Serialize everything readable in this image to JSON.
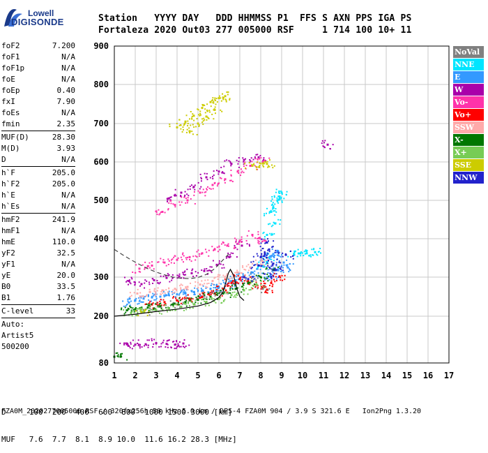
{
  "logo": {
    "line1": "Lowell",
    "line2": "DIGISONDE"
  },
  "header": {
    "line1": "Station   YYYY DAY   DDD HHMMSS P1  FFS S AXN PPS IGA PS",
    "line2": "Fortaleza 2020 Out03 277 005000 RSF     1 714 100 10+ 11"
  },
  "params": [
    {
      "key": "foF2",
      "value": "7.200"
    },
    {
      "key": "foF1",
      "value": "N/A"
    },
    {
      "key": "foF1p",
      "value": "N/A"
    },
    {
      "key": "foE",
      "value": "N/A"
    },
    {
      "key": "foEp",
      "value": "0.40"
    },
    {
      "key": "fxI",
      "value": "7.90"
    },
    {
      "key": "foEs",
      "value": "N/A"
    },
    {
      "key": "fmin",
      "value": "2.35"
    },
    {
      "sep": true
    },
    {
      "key": "MUF(D)",
      "value": "28.30"
    },
    {
      "key": "M(D)",
      "value": "3.93"
    },
    {
      "key": "D",
      "value": "N/A"
    },
    {
      "sep": true
    },
    {
      "key": "h`F",
      "value": "205.0"
    },
    {
      "key": "h`F2",
      "value": "205.0"
    },
    {
      "key": "h`E",
      "value": "N/A"
    },
    {
      "key": "h`Es",
      "value": "N/A"
    },
    {
      "sep": true
    },
    {
      "key": "hmF2",
      "value": "241.9"
    },
    {
      "key": "hmF1",
      "value": "N/A"
    },
    {
      "key": "hmE",
      "value": "110.0"
    },
    {
      "key": "yF2",
      "value": "32.5"
    },
    {
      "key": "yF1",
      "value": "N/A"
    },
    {
      "key": "yE",
      "value": "20.0"
    },
    {
      "key": "B0",
      "value": "33.5"
    },
    {
      "key": "B1",
      "value": "1.76"
    },
    {
      "sep": true
    },
    {
      "key": "C-level",
      "value": "33"
    },
    {
      "sep": true
    }
  ],
  "auto_lines": [
    "Auto:",
    "Artist5",
    "500200"
  ],
  "legend": [
    {
      "label": "NoVal",
      "color": "#808080"
    },
    {
      "label": "NNE",
      "color": "#00e5ff"
    },
    {
      "label": "E",
      "color": "#3399ff"
    },
    {
      "label": "W",
      "color": "#aa00aa"
    },
    {
      "label": "Vo-",
      "color": "#ff33aa"
    },
    {
      "label": "Vo+",
      "color": "#ff0000"
    },
    {
      "label": "SSW",
      "color": "#ffaaaa"
    },
    {
      "label": "X-",
      "color": "#007700"
    },
    {
      "label": "X+",
      "color": "#77cc55"
    },
    {
      "label": "SSE",
      "color": "#cccc00"
    },
    {
      "label": "NNW",
      "color": "#2222cc"
    }
  ],
  "muf_table": {
    "d_line": "D     100  200  400  600  800  1000 1500 3000 [km]",
    "muf_line": "MUF   7.6  7.7  8.1  8.9 10.0  11.6 16.2 28.3 [MHz]"
  },
  "footer": "FZA0M_2020277005000.RSF / 320fx256h 50 kHz 5.0 km / DPS-4 FZA0M 904 / 3.9 S 321.6 E   Ion2Png 1.3.20",
  "chart_data": {
    "type": "scatter",
    "x_ticks": [
      1,
      2,
      3,
      4,
      5,
      6,
      7,
      8,
      9,
      10,
      11,
      12,
      13,
      14,
      15,
      16,
      17
    ],
    "y_ticks": [
      80,
      200,
      300,
      400,
      500,
      600,
      700,
      800,
      900
    ],
    "xlim": [
      1,
      17
    ],
    "ylim": [
      80,
      900
    ],
    "grid": true,
    "series": [
      {
        "name": "NoVal",
        "color": "#808080",
        "points": [
          [
            2.4,
            212
          ],
          [
            3.1,
            225
          ],
          [
            3.9,
            232
          ],
          [
            4.6,
            240
          ],
          [
            5.3,
            252
          ],
          [
            6.1,
            262
          ],
          [
            6.8,
            285
          ],
          [
            7.6,
            300
          ],
          [
            8.1,
            270
          ]
        ]
      },
      {
        "name": "NNE",
        "color": "#00e5ff",
        "points": [
          [
            8.1,
            330
          ],
          [
            8.4,
            350
          ],
          [
            8.6,
            480
          ],
          [
            8.8,
            500
          ],
          [
            8.9,
            510
          ],
          [
            9.0,
            520
          ],
          [
            8.5,
            470
          ],
          [
            8.7,
            440
          ],
          [
            8.3,
            410
          ],
          [
            10.6,
            365
          ],
          [
            10.2,
            362
          ],
          [
            9.9,
            362
          ],
          [
            9.6,
            358
          ]
        ]
      },
      {
        "name": "E",
        "color": "#3399ff",
        "points": [
          [
            1.7,
            235
          ],
          [
            2.0,
            240
          ],
          [
            2.4,
            245
          ],
          [
            2.8,
            248
          ],
          [
            3.2,
            250
          ],
          [
            3.6,
            254
          ],
          [
            4.0,
            256
          ],
          [
            4.4,
            258
          ],
          [
            4.8,
            262
          ],
          [
            5.2,
            266
          ],
          [
            5.6,
            270
          ],
          [
            6.0,
            275
          ],
          [
            6.4,
            282
          ],
          [
            6.8,
            292
          ],
          [
            7.2,
            302
          ],
          [
            7.6,
            312
          ],
          [
            8.0,
            330
          ],
          [
            8.3,
            350
          ],
          [
            8.6,
            360
          ],
          [
            8.8,
            365
          ],
          [
            9.1,
            338
          ],
          [
            9.3,
            325
          ],
          [
            8.8,
            318
          ],
          [
            8.4,
            302
          ]
        ]
      },
      {
        "name": "W",
        "color": "#aa00aa",
        "points": [
          [
            1.6,
            128
          ],
          [
            2.0,
            127
          ],
          [
            2.5,
            128
          ],
          [
            3.0,
            131
          ],
          [
            3.5,
            129
          ],
          [
            3.9,
            127
          ],
          [
            4.3,
            130
          ],
          [
            1.7,
            290
          ],
          [
            2.3,
            282
          ],
          [
            2.9,
            292
          ],
          [
            3.5,
            298
          ],
          [
            4.1,
            302
          ],
          [
            4.7,
            310
          ],
          [
            5.3,
            316
          ],
          [
            5.9,
            332
          ],
          [
            6.5,
            352
          ],
          [
            7.1,
            382
          ],
          [
            3.6,
            505
          ],
          [
            4.2,
            520
          ],
          [
            4.8,
            535
          ],
          [
            5.4,
            560
          ],
          [
            6.0,
            575
          ],
          [
            6.6,
            595
          ],
          [
            7.2,
            605
          ],
          [
            7.9,
            612
          ],
          [
            11.2,
            645
          ]
        ]
      },
      {
        "name": "Vo-",
        "color": "#ff33aa",
        "points": [
          [
            2.2,
            322
          ],
          [
            2.8,
            330
          ],
          [
            3.4,
            338
          ],
          [
            4.0,
            345
          ],
          [
            4.6,
            352
          ],
          [
            5.2,
            362
          ],
          [
            5.8,
            372
          ],
          [
            6.4,
            382
          ],
          [
            7.0,
            395
          ],
          [
            7.6,
            410
          ],
          [
            8.2,
            395
          ],
          [
            3.3,
            470
          ],
          [
            3.9,
            488
          ],
          [
            4.5,
            500
          ],
          [
            5.1,
            520
          ],
          [
            5.7,
            540
          ],
          [
            6.3,
            555
          ],
          [
            6.9,
            575
          ],
          [
            7.5,
            590
          ],
          [
            8.1,
            600
          ]
        ]
      },
      {
        "name": "Vo+",
        "color": "#ff0000",
        "points": [
          [
            2.8,
            230
          ],
          [
            3.4,
            236
          ],
          [
            4.0,
            240
          ],
          [
            4.6,
            245
          ],
          [
            5.2,
            250
          ],
          [
            5.8,
            258
          ],
          [
            6.2,
            270
          ],
          [
            6.6,
            285
          ],
          [
            7.0,
            295
          ],
          [
            7.4,
            290
          ],
          [
            7.8,
            280
          ],
          [
            8.3,
            268
          ],
          [
            8.5,
            285
          ],
          [
            8.9,
            302
          ]
        ]
      },
      {
        "name": "SSW",
        "color": "#ffaaaa",
        "points": [
          [
            2.1,
            258
          ],
          [
            2.7,
            262
          ],
          [
            3.3,
            266
          ],
          [
            3.9,
            270
          ],
          [
            4.5,
            275
          ],
          [
            5.1,
            281
          ],
          [
            5.7,
            290
          ],
          [
            6.3,
            300
          ],
          [
            6.9,
            312
          ],
          [
            7.5,
            325
          ],
          [
            8.1,
            340
          ]
        ]
      },
      {
        "name": "X-",
        "color": "#007700",
        "points": [
          [
            1.0,
            96
          ],
          [
            1.3,
            96
          ],
          [
            1.6,
            215
          ],
          [
            2.0,
            218
          ],
          [
            2.6,
            222
          ],
          [
            3.2,
            226
          ],
          [
            3.8,
            230
          ],
          [
            4.4,
            236
          ],
          [
            5.0,
            242
          ],
          [
            5.6,
            250
          ],
          [
            6.2,
            258
          ],
          [
            6.8,
            270
          ],
          [
            7.4,
            285
          ],
          [
            8.0,
            300
          ],
          [
            8.6,
            318
          ]
        ]
      },
      {
        "name": "X+",
        "color": "#77cc55",
        "points": [
          [
            1.8,
            208
          ],
          [
            2.4,
            212
          ],
          [
            3.0,
            216
          ],
          [
            3.6,
            220
          ],
          [
            4.2,
            224
          ],
          [
            4.8,
            230
          ],
          [
            5.4,
            236
          ],
          [
            6.0,
            244
          ],
          [
            6.6,
            254
          ],
          [
            7.2,
            266
          ],
          [
            7.8,
            280
          ]
        ]
      },
      {
        "name": "SSE",
        "color": "#cccc00",
        "points": [
          [
            4.0,
            690
          ],
          [
            4.4,
            705
          ],
          [
            4.8,
            720
          ],
          [
            5.2,
            740
          ],
          [
            5.6,
            755
          ],
          [
            6.0,
            765
          ],
          [
            6.3,
            770
          ],
          [
            4.6,
            680
          ],
          [
            5.0,
            700
          ],
          [
            5.4,
            718
          ],
          [
            5.8,
            735
          ],
          [
            7.6,
            590
          ],
          [
            8.1,
            596
          ],
          [
            8.3,
            595
          ],
          [
            2.3,
            210
          ]
        ]
      },
      {
        "name": "NNW",
        "color": "#2222cc",
        "points": [
          [
            8.2,
            360
          ],
          [
            8.4,
            372
          ],
          [
            8.5,
            300
          ],
          [
            8.6,
            335
          ],
          [
            8.7,
            318
          ],
          [
            7.9,
            330
          ],
          [
            8.0,
            352
          ],
          [
            7.4,
            295
          ],
          [
            8.3,
            390
          ],
          [
            9.2,
            358
          ]
        ]
      }
    ],
    "profile_curve": [
      [
        1.0,
        200
      ],
      [
        2.0,
        205
      ],
      [
        3.0,
        212
      ],
      [
        4.0,
        218
      ],
      [
        5.0,
        226
      ],
      [
        5.6,
        235
      ],
      [
        6.0,
        248
      ],
      [
        6.2,
        262
      ],
      [
        6.35,
        290
      ],
      [
        6.45,
        310
      ],
      [
        6.55,
        320
      ],
      [
        6.7,
        305
      ],
      [
        6.85,
        272
      ],
      [
        7.0,
        250
      ],
      [
        7.2,
        240
      ]
    ],
    "dashed_curve": [
      [
        1.0,
        372
      ],
      [
        1.4,
        358
      ],
      [
        1.8,
        345
      ],
      [
        2.2,
        333
      ],
      [
        2.6,
        322
      ],
      [
        3.0,
        313
      ],
      [
        3.4,
        306
      ],
      [
        3.8,
        300
      ],
      [
        4.2,
        297
      ],
      [
        4.6,
        296
      ],
      [
        5.0,
        299
      ],
      [
        5.4,
        307
      ],
      [
        5.8,
        322
      ],
      [
        6.2,
        345
      ],
      [
        6.5,
        362
      ]
    ],
    "profile_curve_color": "#000000",
    "dashed_curve_color": "#444444"
  }
}
